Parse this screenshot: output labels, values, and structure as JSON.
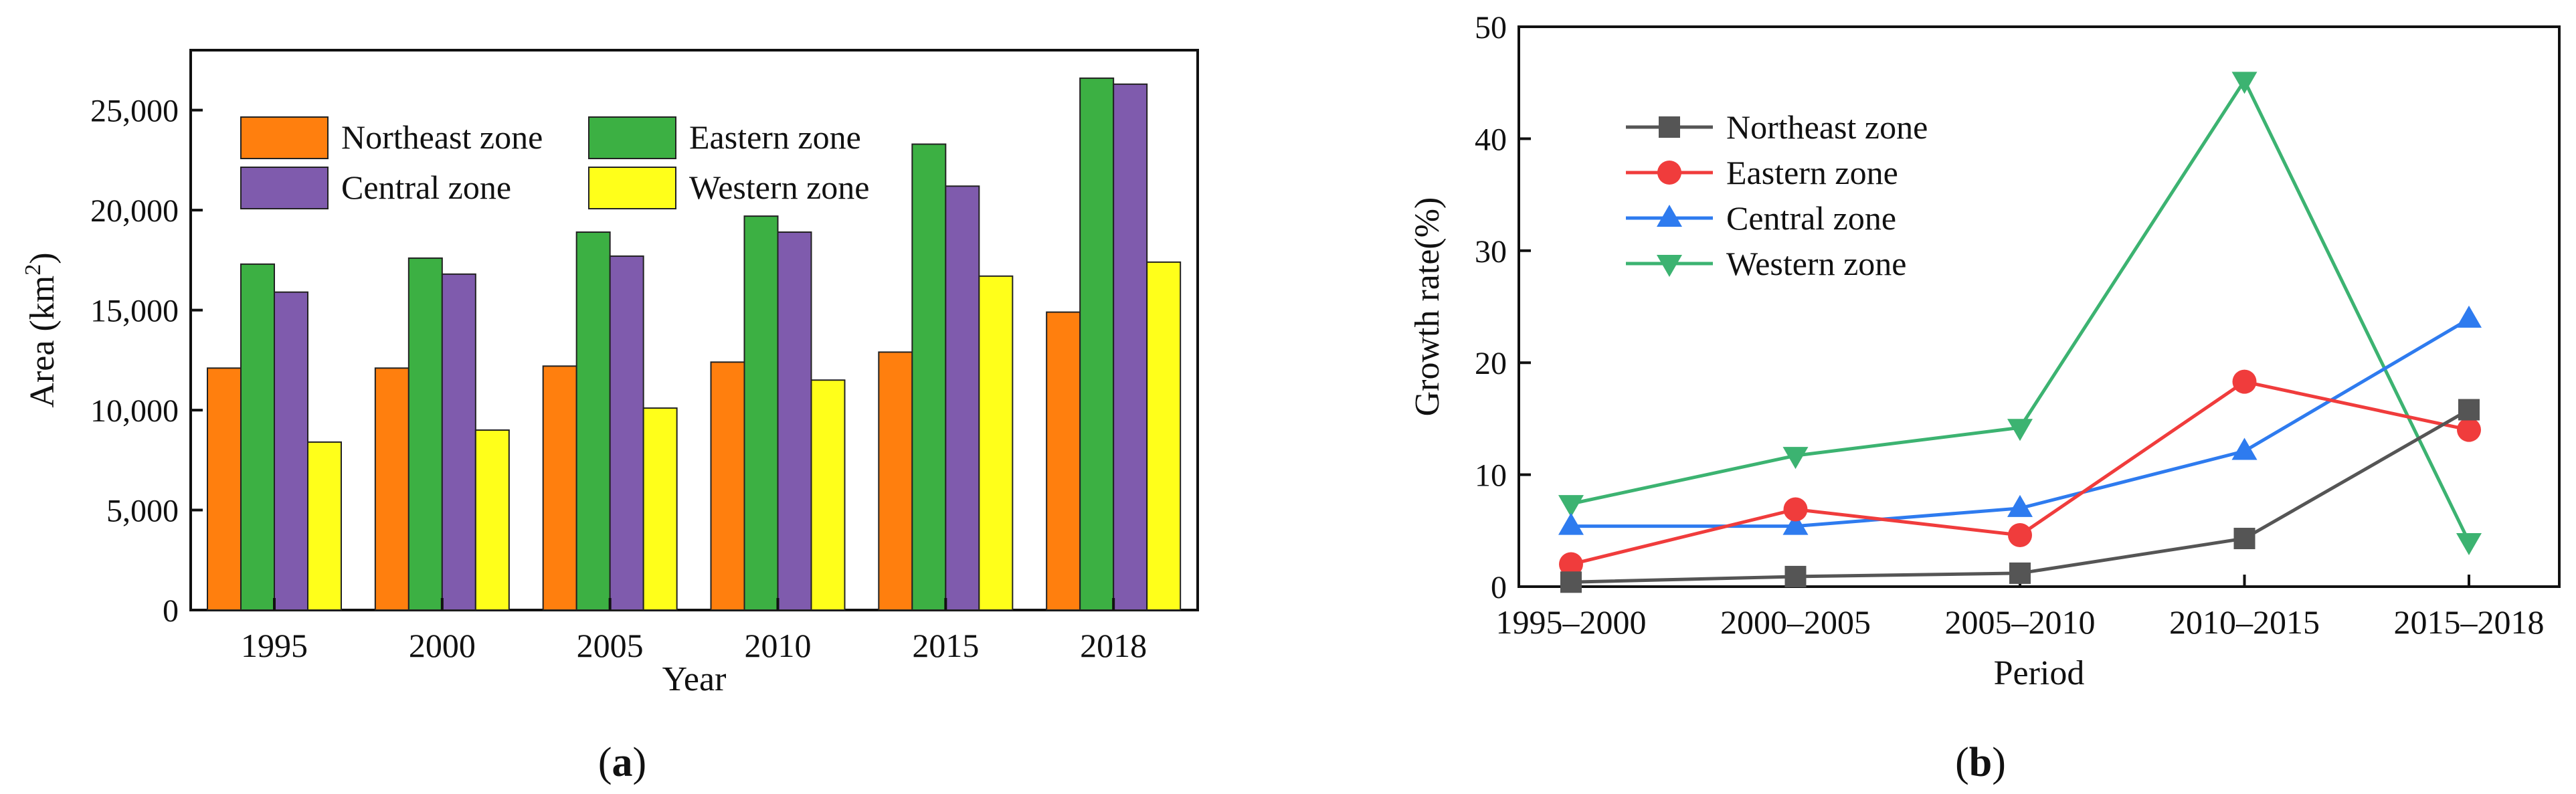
{
  "chart_data": [
    {
      "panel": "a",
      "type": "bar",
      "title": "",
      "xlabel": "Year",
      "ylabel": "Area (km²)",
      "ylabel_main": "Area (km",
      "ylabel_sup": "2",
      "ylabel_end": ")",
      "categories": [
        "1995",
        "2000",
        "2005",
        "2010",
        "2015",
        "2018"
      ],
      "ylim": [
        0,
        28000
      ],
      "yticks": [
        0,
        5000,
        10000,
        15000,
        20000,
        25000
      ],
      "ytick_labels": [
        "0",
        "5,000",
        "10,000",
        "15,000",
        "20,000",
        "25,000"
      ],
      "series": [
        {
          "name": "Northeast zone",
          "color": "#FF7F0E",
          "values": [
            12100,
            12100,
            12200,
            12400,
            12900,
            14900
          ]
        },
        {
          "name": "Eastern zone",
          "color": "#3CB043",
          "values": [
            17300,
            17600,
            18900,
            19700,
            23300,
            26600
          ]
        },
        {
          "name": "Central zone",
          "color": "#7F5BAD",
          "values": [
            15900,
            16800,
            17700,
            18900,
            21200,
            26300
          ]
        },
        {
          "name": "Western zone",
          "color": "#FFFF1A",
          "values": [
            8400,
            9000,
            10100,
            11500,
            16700,
            17400
          ]
        }
      ],
      "legend": "top-left, two columns",
      "grid": false
    },
    {
      "panel": "b",
      "type": "line",
      "title": "",
      "xlabel": "Period",
      "ylabel": "Growth rate(%)",
      "categories": [
        "1995–2000",
        "2000–2005",
        "2005–2010",
        "2010–2015",
        "2015–2018"
      ],
      "ylim": [
        0,
        50
      ],
      "yticks": [
        0,
        10,
        20,
        30,
        40,
        50
      ],
      "ytick_labels": [
        "0",
        "10",
        "20",
        "30",
        "40",
        "50"
      ],
      "series": [
        {
          "name": "Northeast zone",
          "color": "#555555",
          "marker": "square",
          "values": [
            0.4,
            0.9,
            1.2,
            4.3,
            15.8
          ]
        },
        {
          "name": "Eastern zone",
          "color": "#F03C3C",
          "marker": "circle",
          "values": [
            2.0,
            6.9,
            4.6,
            18.3,
            14.0
          ]
        },
        {
          "name": "Central zone",
          "color": "#2E7BEF",
          "marker": "triangle-up",
          "values": [
            5.4,
            5.4,
            7.0,
            12.1,
            23.9
          ]
        },
        {
          "name": "Western zone",
          "color": "#3CB371",
          "marker": "triangle-down",
          "values": [
            7.4,
            11.7,
            14.2,
            45.2,
            4.0
          ]
        }
      ],
      "legend": "top-left",
      "grid": false
    }
  ],
  "panel_labels": {
    "a": {
      "open": "(",
      "letter": "a",
      "close": ")"
    },
    "b": {
      "open": "(",
      "letter": "b",
      "close": ")"
    }
  }
}
